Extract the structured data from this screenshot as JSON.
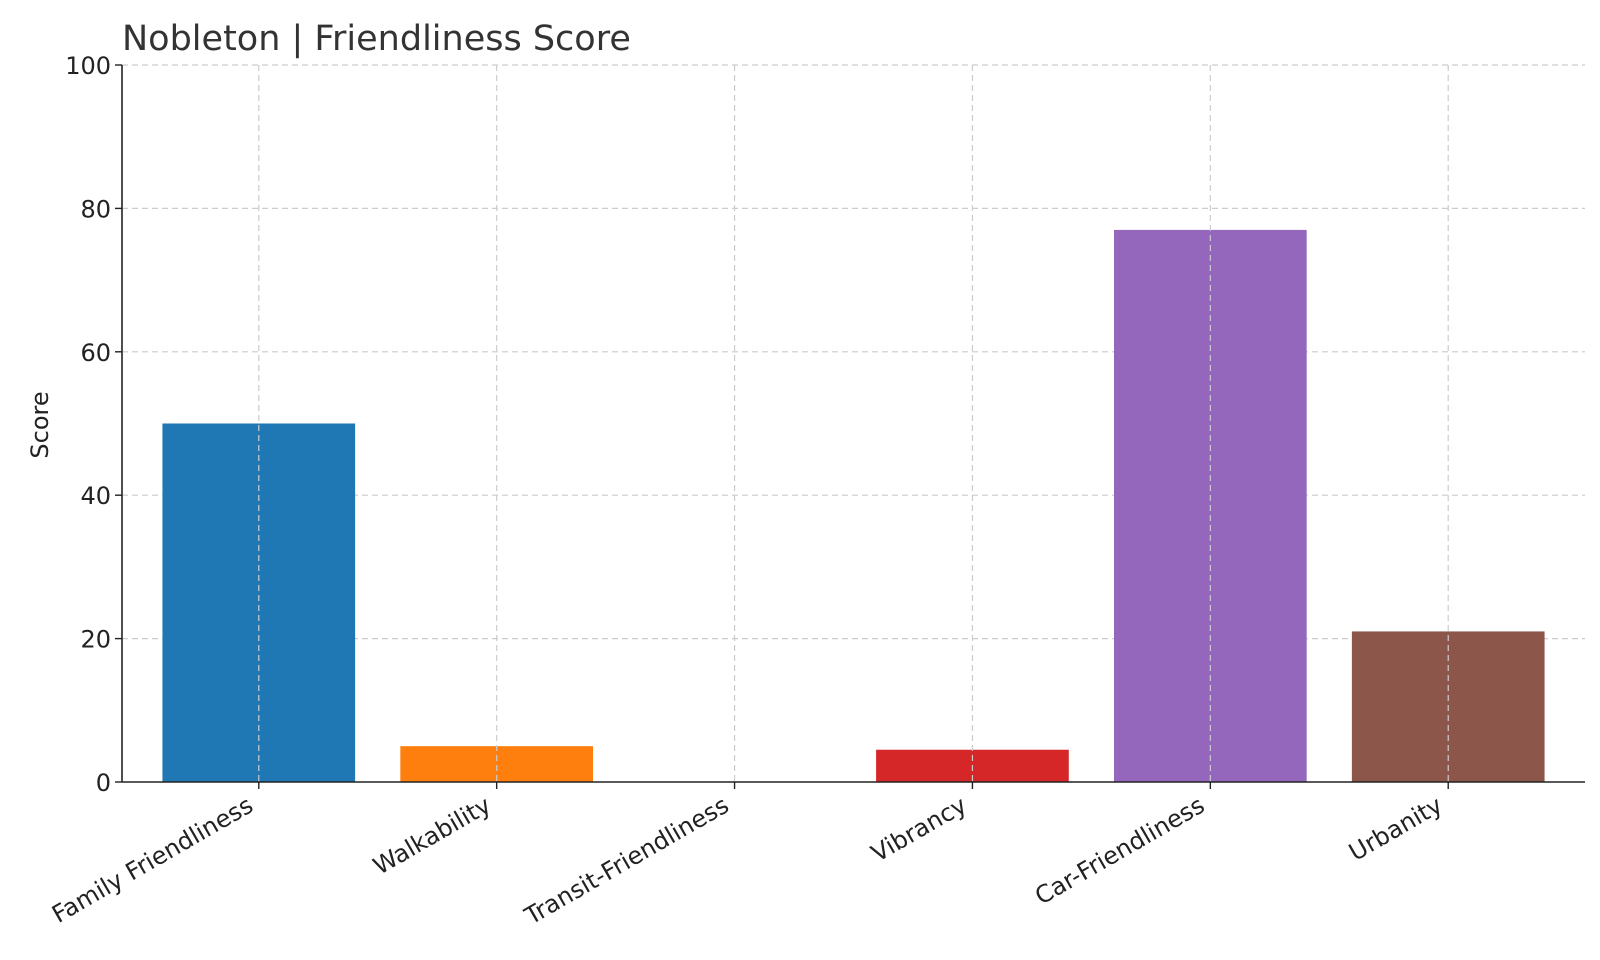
{
  "chart_data": {
    "type": "bar",
    "title": "Nobleton |  Friendliness Score",
    "xlabel": "",
    "ylabel": "Score",
    "categories": [
      "Family Friendliness",
      "Walkability",
      "Transit-Friendliness",
      "Vibrancy",
      "Car-Friendliness",
      "Urbanity"
    ],
    "values": [
      50,
      5,
      0,
      4.5,
      77,
      21
    ],
    "colors": [
      "#1f77b4",
      "#ff7f0e",
      "#2ca02c",
      "#d62728",
      "#9467bd",
      "#8c564b"
    ],
    "ylim": [
      0,
      100
    ],
    "yticks": [
      0,
      20,
      40,
      60,
      80,
      100
    ],
    "grid": true,
    "legend": "none"
  }
}
